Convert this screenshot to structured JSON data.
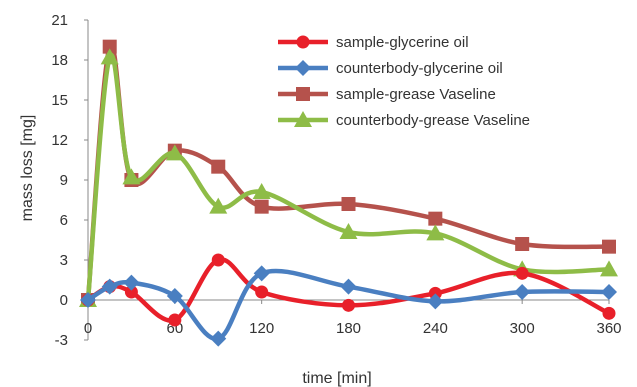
{
  "chart_data": {
    "type": "line",
    "title": "",
    "xlabel": "time [min]",
    "ylabel": "mass loss [mg]",
    "xlim": [
      0,
      360
    ],
    "ylim": [
      -3,
      21
    ],
    "xticks": [
      0,
      60,
      120,
      180,
      240,
      300,
      360
    ],
    "yticks": [
      -3,
      0,
      3,
      6,
      9,
      12,
      15,
      18,
      21
    ],
    "grid": false,
    "legend_position": "top-right",
    "series": [
      {
        "name": "sample-glycerine oil",
        "color": "#e8202a",
        "marker": "circle",
        "x": [
          0,
          15,
          30,
          60,
          90,
          120,
          180,
          240,
          300,
          360
        ],
        "y": [
          0,
          1.0,
          0.6,
          -1.5,
          3.0,
          0.6,
          -0.4,
          0.5,
          2.0,
          -1.0
        ]
      },
      {
        "name": "counterbody-glycerine oil",
        "color": "#4a7fc1",
        "marker": "diamond",
        "x": [
          0,
          15,
          30,
          60,
          90,
          120,
          180,
          240,
          300,
          360
        ],
        "y": [
          0,
          1.0,
          1.3,
          0.3,
          -2.9,
          2.0,
          1.0,
          -0.1,
          0.6,
          0.6
        ]
      },
      {
        "name": "sample-grease Vaseline",
        "color": "#b5524c",
        "marker": "square",
        "x": [
          0,
          15,
          30,
          60,
          90,
          120,
          180,
          240,
          300,
          360
        ],
        "y": [
          0,
          19.0,
          9.0,
          11.2,
          10.0,
          7.0,
          7.2,
          6.1,
          4.2,
          4.0
        ]
      },
      {
        "name": "counterbody-grease Vaseline",
        "color": "#8ebc47",
        "marker": "triangle",
        "x": [
          0,
          15,
          30,
          60,
          90,
          120,
          180,
          240,
          300,
          360
        ],
        "y": [
          0,
          18.2,
          9.2,
          11.0,
          7.0,
          8.1,
          5.1,
          5.0,
          2.3,
          2.3
        ]
      }
    ]
  }
}
